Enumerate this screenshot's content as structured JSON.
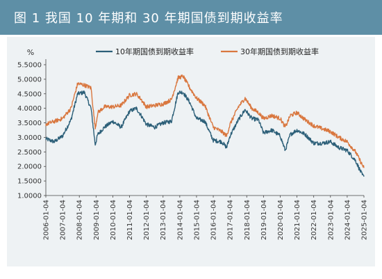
{
  "figure": {
    "title": "图 1    我国 10 年期和 30 年期国债到期收益率"
  },
  "colors": {
    "title_bar": "#5e8fa6",
    "panel_bg": "#eef2f4",
    "series_10y": "#2c5f78",
    "series_30y": "#d9773f"
  },
  "chart_data": {
    "type": "line",
    "title": "",
    "ylabel": "%",
    "xlabel": "",
    "ylim": [
      1.0,
      5.5
    ],
    "yticks": [
      "5.5000",
      "5.0000",
      "4.5000",
      "4.0000",
      "3.5000",
      "3.0000",
      "2.5000",
      "2.0000",
      "1.5000",
      "1.0000"
    ],
    "xticks": [
      "2006-01-04",
      "2007-01-04",
      "2008-01-04",
      "2009-01-04",
      "2010-01-04",
      "2011-01-04",
      "2012-01-04",
      "2013-01-04",
      "2014-01-04",
      "2015-01-04",
      "2016-01-04",
      "2017-01-04",
      "2018-01-04",
      "2019-01-04",
      "2020-01-04",
      "2021-01-04",
      "2022-01-04",
      "2023-01-04",
      "2024-01-04",
      "2025-01-04"
    ],
    "grid": false,
    "legend_position": "top",
    "x": [
      2006.0,
      2006.5,
      2007.0,
      2007.5,
      2007.9,
      2008.3,
      2008.7,
      2008.95,
      2009.1,
      2009.5,
      2010.0,
      2010.5,
      2011.0,
      2011.4,
      2011.7,
      2012.0,
      2012.5,
      2013.0,
      2013.5,
      2013.9,
      2014.2,
      2014.6,
      2015.0,
      2015.5,
      2016.0,
      2016.5,
      2016.8,
      2017.0,
      2017.5,
      2017.9,
      2018.3,
      2018.7,
      2019.0,
      2019.5,
      2020.0,
      2020.3,
      2020.6,
      2021.0,
      2021.5,
      2022.0,
      2022.5,
      2023.0,
      2023.5,
      2024.0,
      2024.5,
      2024.9,
      2025.0
    ],
    "series": [
      {
        "name": "10年期国债到期收益率",
        "values": [
          2.95,
          2.85,
          3.05,
          3.6,
          4.5,
          4.55,
          4.0,
          2.75,
          3.1,
          3.35,
          3.55,
          3.35,
          3.9,
          4.0,
          3.75,
          3.45,
          3.35,
          3.5,
          3.55,
          4.55,
          4.55,
          4.2,
          3.65,
          3.55,
          2.9,
          2.85,
          2.65,
          3.05,
          3.6,
          3.95,
          3.65,
          3.6,
          3.15,
          3.25,
          3.05,
          2.55,
          3.1,
          3.25,
          3.1,
          2.8,
          2.8,
          2.85,
          2.65,
          2.55,
          2.2,
          1.7,
          1.65
        ]
      },
      {
        "name": "30年期国债到期收益率",
        "values": [
          3.45,
          3.55,
          3.65,
          4.0,
          4.85,
          4.8,
          4.7,
          3.3,
          3.85,
          4.05,
          4.05,
          4.1,
          4.45,
          4.5,
          4.3,
          4.05,
          4.1,
          4.15,
          4.3,
          5.05,
          5.1,
          4.7,
          4.35,
          4.1,
          3.35,
          3.2,
          3.05,
          3.45,
          4.05,
          4.35,
          4.0,
          3.85,
          3.65,
          3.75,
          3.65,
          3.35,
          3.75,
          3.85,
          3.6,
          3.4,
          3.3,
          3.2,
          3.0,
          2.85,
          2.5,
          2.05,
          1.95
        ]
      }
    ]
  }
}
